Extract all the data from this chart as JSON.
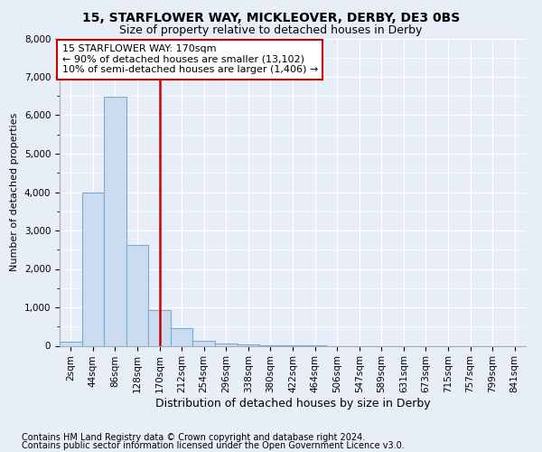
{
  "title": "15, STARFLOWER WAY, MICKLEOVER, DERBY, DE3 0BS",
  "subtitle": "Size of property relative to detached houses in Derby",
  "xlabel": "Distribution of detached houses by size in Derby",
  "ylabel": "Number of detached properties",
  "annotation_title": "15 STARFLOWER WAY: 170sqm",
  "annotation_line1": "← 90% of detached houses are smaller (13,102)",
  "annotation_line2": "10% of semi-detached houses are larger (1,406) →",
  "footnote1": "Contains HM Land Registry data © Crown copyright and database right 2024.",
  "footnote2": "Contains public sector information licensed under the Open Government Licence v3.0.",
  "categories": [
    "2sqm",
    "44sqm",
    "86sqm",
    "128sqm",
    "170sqm",
    "212sqm",
    "254sqm",
    "296sqm",
    "338sqm",
    "380sqm",
    "422sqm",
    "464sqm",
    "506sqm",
    "547sqm",
    "589sqm",
    "631sqm",
    "673sqm",
    "715sqm",
    "757sqm",
    "799sqm",
    "841sqm"
  ],
  "values": [
    100,
    3980,
    6490,
    2620,
    940,
    450,
    130,
    60,
    30,
    10,
    5,
    2,
    0,
    0,
    0,
    0,
    0,
    0,
    0,
    0,
    0
  ],
  "bar_color_normal": "#ccdcf0",
  "bar_edge_color": "#7aaad4",
  "bar_color_highlight": "#cc0000",
  "highlight_index": 4,
  "vline_color": "#cc0000",
  "vline_index": 4,
  "ylim": [
    0,
    8000
  ],
  "yticks": [
    0,
    1000,
    2000,
    3000,
    4000,
    5000,
    6000,
    7000,
    8000
  ],
  "background_color": "#e8eef8",
  "plot_bg_color": "#e8eef8",
  "grid_color": "#ffffff",
  "annotation_box_color": "#ffffff",
  "annotation_box_edge": "#cc0000",
  "title_fontsize": 10,
  "subtitle_fontsize": 9,
  "xlabel_fontsize": 9,
  "ylabel_fontsize": 8,
  "tick_fontsize": 7.5,
  "annotation_fontsize": 8,
  "footnote_fontsize": 7
}
